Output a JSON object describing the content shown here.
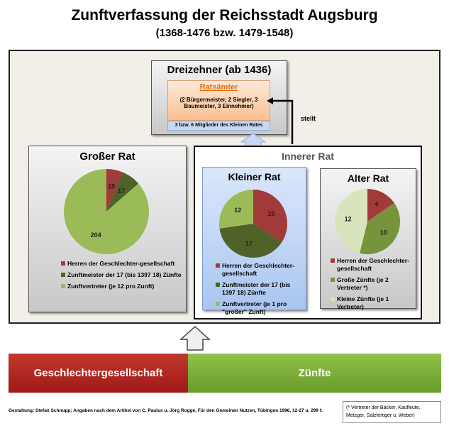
{
  "title": "Zunftverfassung der Reichsstadt Augsburg",
  "subtitle": "(1368-1476 bzw. 1479-1548)",
  "dreizehner": {
    "title": "Dreizehner (ab 1436)",
    "ratsaemter": "Ratsämter",
    "ratsaemter_detail": "(2 Bürgermeister, 2 Siegler, 3 Baumeister, 3 Einnehmer)",
    "members": "3 bzw. 6 Mitglieder des Kleinen Rates"
  },
  "stellt": "stellt",
  "innerer_rat": "Innerer Rat",
  "colors": {
    "red": "#a33a3a",
    "dark_green": "#4f6228",
    "green": "#77933c",
    "light_green": "#9bbb59",
    "pale_green": "#d7e4bd"
  },
  "chart_data": [
    {
      "type": "pie",
      "title": "Großer Rat",
      "values": [
        15,
        17,
        204
      ],
      "labels": [
        "Herren der Geschlechter-gesellschaft",
        "Zunftmeister der 17 (bis 1397 18) Zünfte",
        "Zunftvertreter (je 12 pro Zunft)"
      ],
      "colors": [
        "#a33a3a",
        "#4f6228",
        "#9bbb59"
      ]
    },
    {
      "type": "pie",
      "title": "Kleiner Rat",
      "values": [
        15,
        17,
        12
      ],
      "labels": [
        "Herren der Geschlechter-gesellschaft",
        "Zunftmeister der 17 (bis 1397 18) Zünfte",
        "Zunftvertreter (je 1 pro \"großer\" Zunft)"
      ],
      "colors": [
        "#a33a3a",
        "#4f6228",
        "#9bbb59"
      ]
    },
    {
      "type": "pie",
      "title": "Alter Rat",
      "values": [
        4,
        10,
        12
      ],
      "labels": [
        "Herren der Geschlechter-gesellschaft",
        "Große Zünfte (je 2 Vertreter *)",
        "Kleine Zünfte (je 1 Vertreter)"
      ],
      "colors": [
        "#a33a3a",
        "#77933c",
        "#d7e4bd"
      ]
    }
  ],
  "bars": {
    "left": "Geschlechtergesellschaft",
    "right": "Zünfte"
  },
  "footer": "Gestaltung: Stefan Schnupp; Angaben nach dem Artikel von C. Paulus u. Jörg Rogge, Für den Gemeinen Nutzen,  Tübingen 1996, 12-27 u. 299 f.",
  "note": "(* Vertreter der Bäcker, Kaufleute, Metzger, Salzfertiger u. Weber)"
}
